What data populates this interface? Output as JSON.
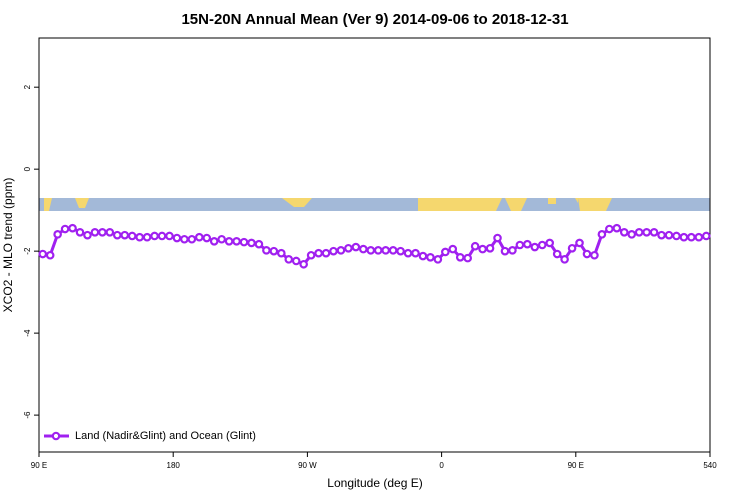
{
  "chart_data": {
    "type": "line",
    "title": "15N-20N Annual Mean (Ver 9)   2014-09-06 to 2018-12-31",
    "x_label": "Longitude (deg E)",
    "y_label": "XCO2 - MLO trend (ppm)",
    "x": [
      92.5,
      97.5,
      102.5,
      107.5,
      112.5,
      117.5,
      122.5,
      127.5,
      132.5,
      137.5,
      142.5,
      147.5,
      152.5,
      157.5,
      162.5,
      167.5,
      172.5,
      177.5,
      182.5,
      187.5,
      192.5,
      197.5,
      202.5,
      207.5,
      212.5,
      217.5,
      222.5,
      227.5,
      232.5,
      237.5,
      242.5,
      247.5,
      252.5,
      257.5,
      262.5,
      267.5,
      272.5,
      277.5,
      282.5,
      287.5,
      292.5,
      297.5,
      302.5,
      307.5,
      312.5,
      317.5,
      322.5,
      327.5,
      332.5,
      337.5,
      342.5,
      347.5,
      352.5,
      357.5,
      362.5,
      367.5,
      372.5,
      377.5,
      382.5,
      387.5,
      392.5,
      397.5,
      402.5,
      407.5,
      412.5,
      417.5,
      422.5,
      427.5,
      432.5,
      437.5,
      442.5,
      447.5,
      452.5,
      457.5,
      462.5,
      467.5,
      472.5,
      477.5,
      482.5,
      487.5,
      492.5,
      497.5,
      502.5,
      507.5,
      512.5,
      517.5,
      522.5,
      527.5,
      532.5,
      537.5
    ],
    "series": [
      {
        "name": "Land (Nadir&Glint) and Ocean (Glint)",
        "color": "#a020f0",
        "values": [
          -2.07,
          -2.1,
          -1.59,
          -1.46,
          -1.44,
          -1.54,
          -1.61,
          -1.54,
          -1.54,
          -1.54,
          -1.61,
          -1.61,
          -1.63,
          -1.66,
          -1.66,
          -1.63,
          -1.63,
          -1.63,
          -1.68,
          -1.71,
          -1.71,
          -1.66,
          -1.68,
          -1.76,
          -1.71,
          -1.76,
          -1.76,
          -1.78,
          -1.8,
          -1.83,
          -1.98,
          -2.0,
          -2.05,
          -2.2,
          -2.24,
          -2.32,
          -2.1,
          -2.05,
          -2.05,
          -2.0,
          -1.98,
          -1.93,
          -1.9,
          -1.95,
          -1.98,
          -1.98,
          -1.98,
          -1.98,
          -2.0,
          -2.05,
          -2.05,
          -2.12,
          -2.15,
          -2.2,
          -2.02,
          -1.95,
          -2.15,
          -2.17,
          -1.88,
          -1.95,
          -1.93,
          -1.68,
          -2.0,
          -1.98,
          -1.85,
          -1.83,
          -1.9,
          -1.85,
          -1.8,
          -2.07,
          -2.2,
          -1.93,
          -1.8,
          -2.07,
          -2.1,
          -1.59,
          -1.46,
          -1.44,
          -1.54,
          -1.59,
          -1.54,
          -1.54,
          -1.54,
          -1.61,
          -1.61,
          -1.63,
          -1.66,
          -1.66,
          -1.66,
          -1.63
        ]
      }
    ],
    "xlim": [
      90,
      540
    ],
    "xticks": [
      {
        "value": 90,
        "label": "90 E"
      },
      180,
      {
        "value": 270,
        "label": "90 W"
      },
      {
        "value": 360,
        "label": "0"
      },
      {
        "value": 450,
        "label": "90 E"
      },
      540
    ],
    "ylim": [
      -6.9,
      3.2
    ],
    "yticks": [
      -6,
      -4,
      -2,
      0,
      2
    ],
    "legend": "bottomleft"
  }
}
